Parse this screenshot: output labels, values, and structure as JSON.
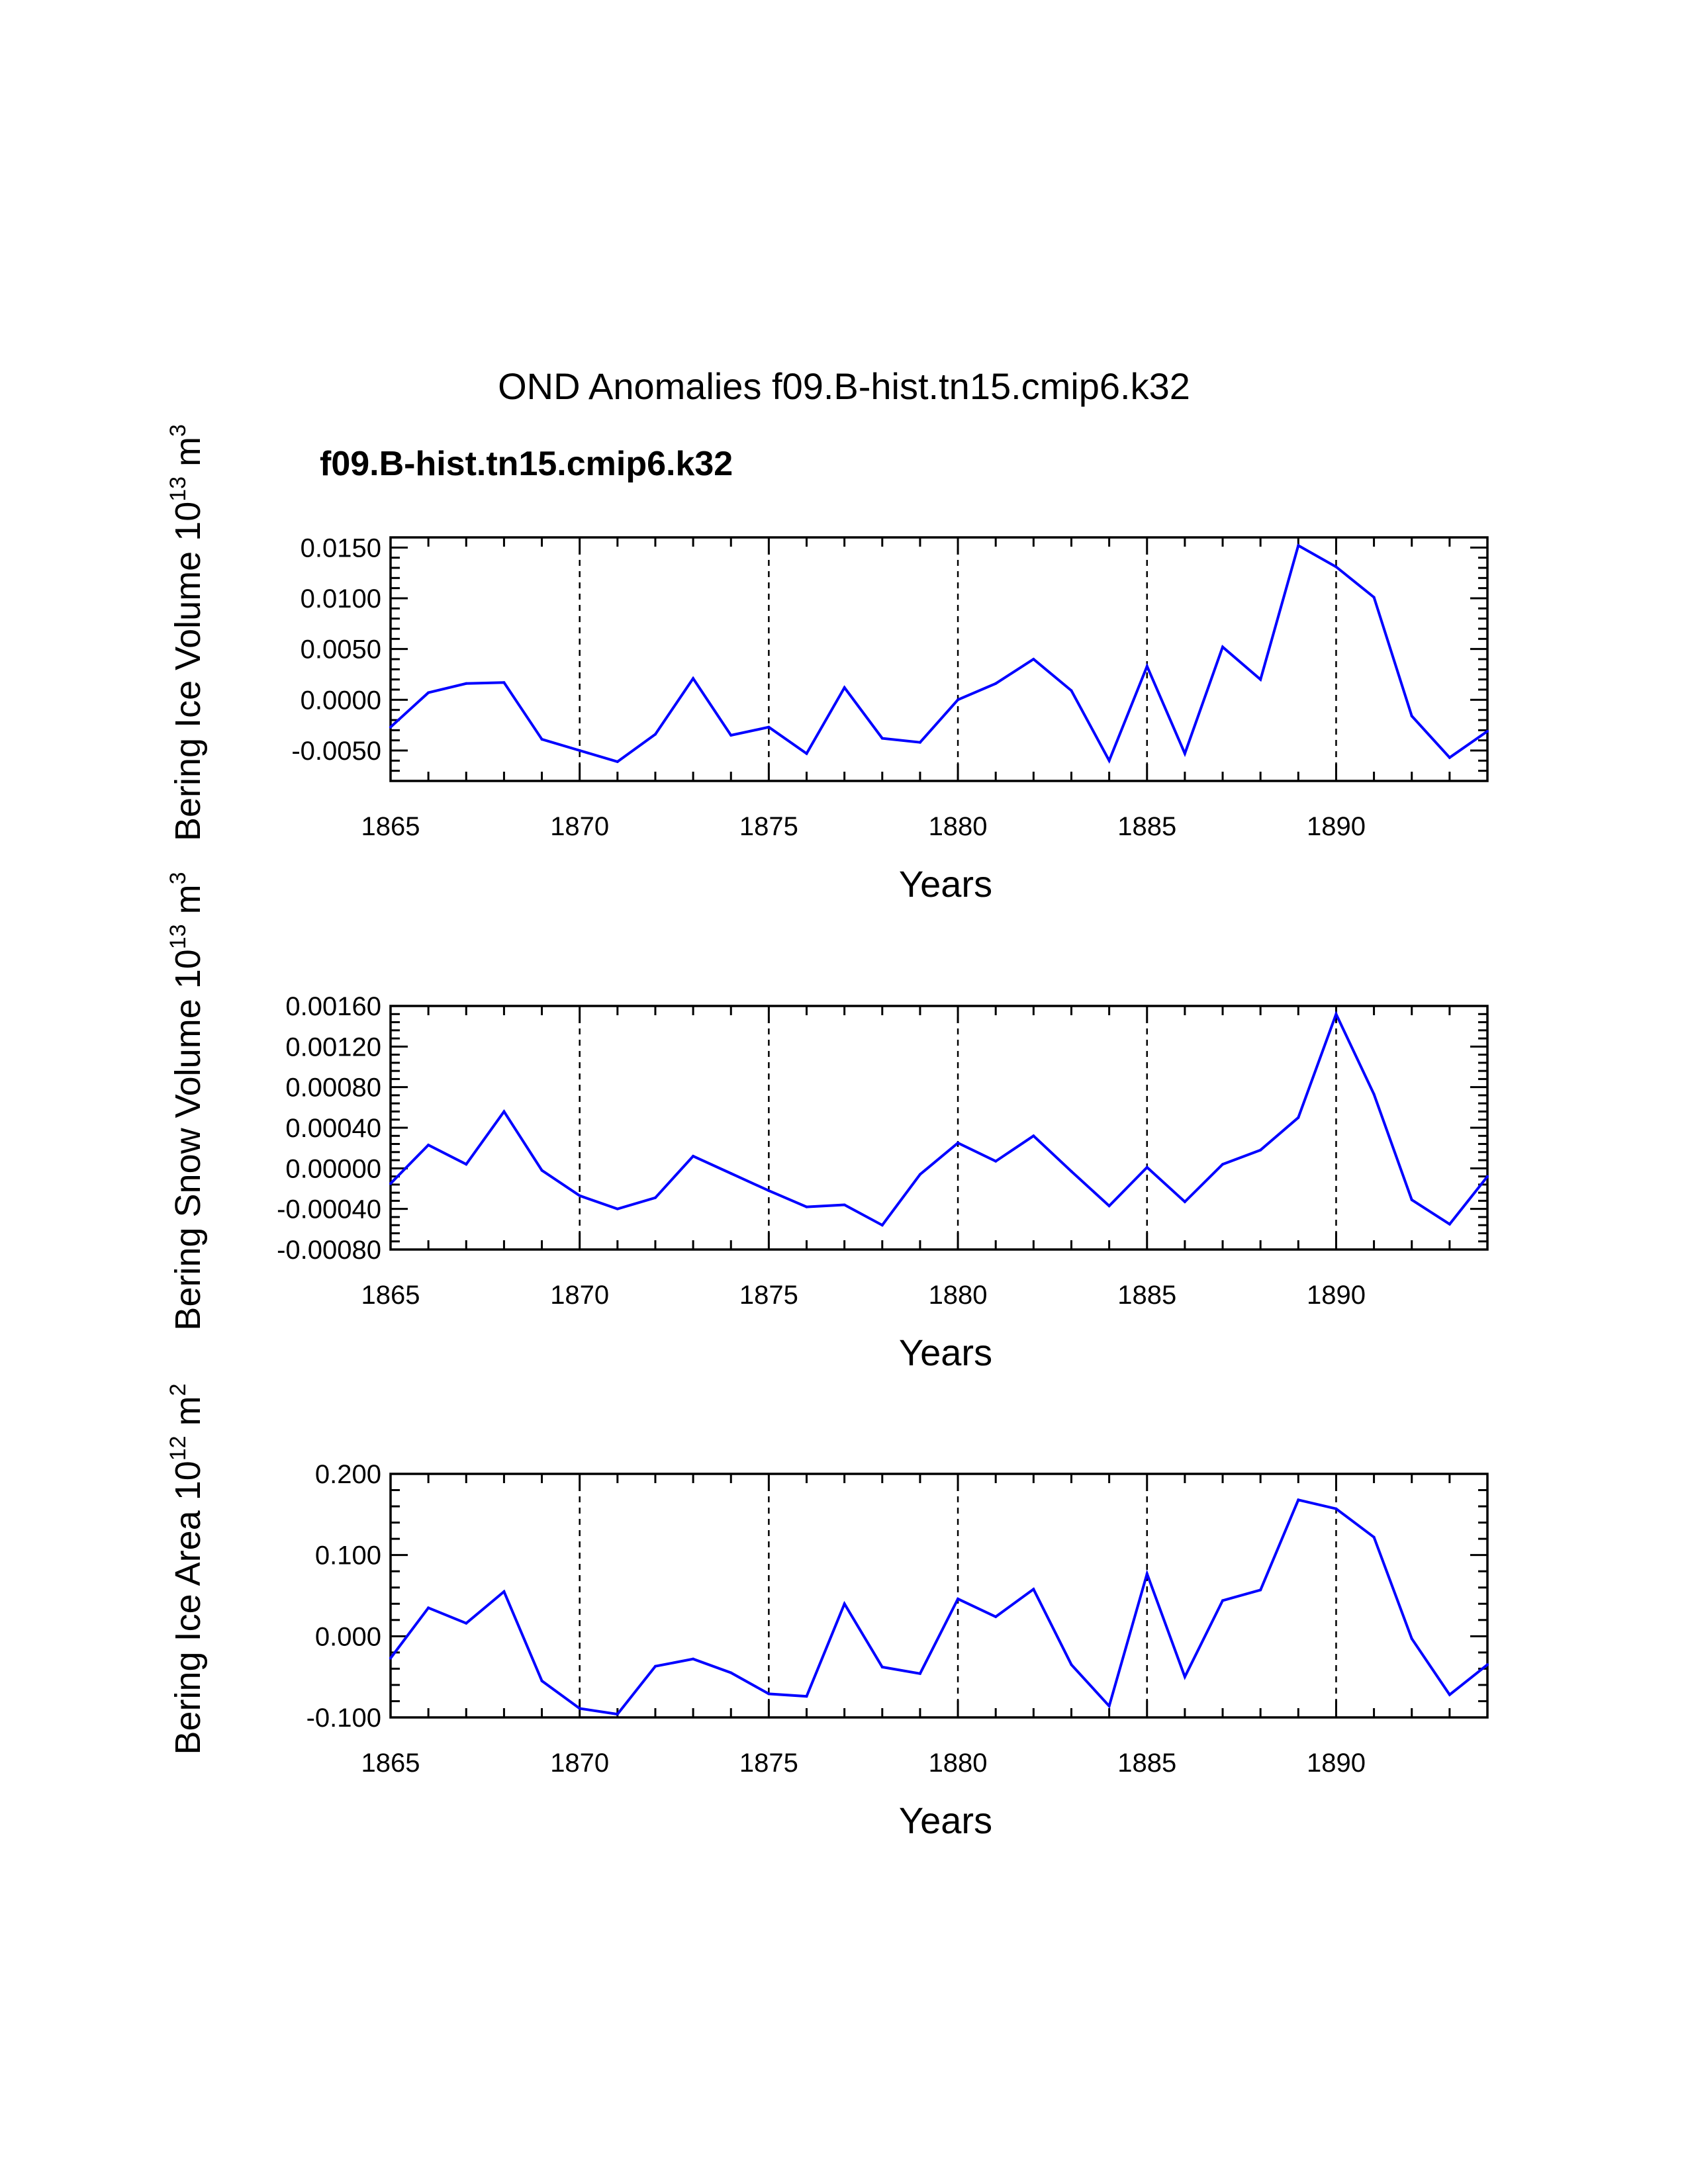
{
  "figure": {
    "title": "OND Anomalies f09.B-hist.tn15.cmip6.k32",
    "case_label": "f09.B-hist.tn15.cmip6.k32",
    "case_color": "#0000ff",
    "line_color": "#0000ff"
  },
  "chart_data": [
    {
      "type": "line",
      "title": "",
      "xlabel": "Years",
      "ylabel_text": "Bering Ice Volume 10",
      "ylabel_exp": "13",
      "ylabel_unit": " m",
      "ylabel_unit_exp": "3",
      "xlim": [
        1865,
        1894
      ],
      "ylim": [
        -0.008,
        0.016
      ],
      "x_ticks": [
        1865,
        1870,
        1875,
        1880,
        1885,
        1890
      ],
      "x_tick_labels": [
        "1865",
        "1870",
        "1875",
        "1880",
        "1885",
        "1890"
      ],
      "y_ticks": [
        -0.005,
        0.0,
        0.005,
        0.01,
        0.015
      ],
      "y_tick_labels": [
        "-0.0050",
        "0.0000",
        "0.0050",
        "0.0100",
        "0.0150"
      ],
      "x_grid": [
        1870,
        1875,
        1880,
        1885,
        1890
      ],
      "series": [
        {
          "name": "f09.B-hist.tn15.cmip6.k32",
          "x": [
            1865,
            1866,
            1867,
            1868,
            1869,
            1870,
            1871,
            1872,
            1873,
            1874,
            1875,
            1876,
            1877,
            1878,
            1879,
            1880,
            1881,
            1882,
            1883,
            1884,
            1885,
            1886,
            1887,
            1888,
            1889,
            1890,
            1891,
            1892,
            1893,
            1894
          ],
          "values": [
            -0.0027,
            0.0007,
            0.0016,
            0.0017,
            -0.0039,
            -0.005,
            -0.0061,
            -0.0034,
            0.0021,
            -0.0035,
            -0.0027,
            -0.0053,
            0.0012,
            -0.0038,
            -0.0042,
            0.0,
            0.0016,
            0.004,
            0.0009,
            -0.006,
            0.0033,
            -0.0053,
            0.0052,
            0.002,
            0.0152,
            0.0131,
            0.0101,
            -0.0016,
            -0.0057,
            -0.0031
          ]
        }
      ]
    },
    {
      "type": "line",
      "title": "",
      "xlabel": "Years",
      "ylabel_text": "Bering Snow Volume 10",
      "ylabel_exp": "13",
      "ylabel_unit": " m",
      "ylabel_unit_exp": "3",
      "xlim": [
        1865,
        1894
      ],
      "ylim": [
        -0.0008,
        0.0016
      ],
      "x_ticks": [
        1865,
        1870,
        1875,
        1880,
        1885,
        1890
      ],
      "x_tick_labels": [
        "1865",
        "1870",
        "1875",
        "1880",
        "1885",
        "1890"
      ],
      "y_ticks": [
        -0.0008,
        -0.0004,
        0.0,
        0.0004,
        0.0008,
        0.0012,
        0.0016
      ],
      "y_tick_labels": [
        "-0.00080",
        "-0.00040",
        "0.00000",
        "0.00040",
        "0.00080",
        "0.00120",
        "0.00160"
      ],
      "x_grid": [
        1870,
        1875,
        1880,
        1885,
        1890
      ],
      "series": [
        {
          "name": "f09.B-hist.tn15.cmip6.k32",
          "x": [
            1865,
            1866,
            1867,
            1868,
            1869,
            1870,
            1871,
            1872,
            1873,
            1874,
            1875,
            1876,
            1877,
            1878,
            1879,
            1880,
            1881,
            1882,
            1883,
            1884,
            1885,
            1886,
            1887,
            1888,
            1889,
            1890,
            1891,
            1892,
            1893,
            1894
          ],
          "values": [
            -0.00015,
            0.00023,
            4e-05,
            0.00056,
            -2e-05,
            -0.00027,
            -0.0004,
            -0.00029,
            0.00012,
            -5e-05,
            -0.00022,
            -0.00038,
            -0.00036,
            -0.00056,
            -6e-05,
            0.00025,
            7e-05,
            0.00032,
            -3e-05,
            -0.00037,
            1e-05,
            -0.00033,
            4e-05,
            0.00018,
            0.0005,
            0.00152,
            0.00073,
            -0.00031,
            -0.00055,
            -8e-05
          ]
        }
      ]
    },
    {
      "type": "line",
      "title": "",
      "xlabel": "Years",
      "ylabel_text": "Bering Ice Area 10",
      "ylabel_exp": "12",
      "ylabel_unit": " m",
      "ylabel_unit_exp": "2",
      "xlim": [
        1865,
        1894
      ],
      "ylim": [
        -0.1,
        0.2
      ],
      "x_ticks": [
        1865,
        1870,
        1875,
        1880,
        1885,
        1890
      ],
      "x_tick_labels": [
        "1865",
        "1870",
        "1875",
        "1880",
        "1885",
        "1890"
      ],
      "y_ticks": [
        -0.1,
        0.0,
        0.1,
        0.2
      ],
      "y_tick_labels": [
        "-0.100",
        "0.000",
        "0.100",
        "0.200"
      ],
      "x_grid": [
        1870,
        1875,
        1880,
        1885,
        1890
      ],
      "series": [
        {
          "name": "f09.B-hist.tn15.cmip6.k32",
          "x": [
            1865,
            1866,
            1867,
            1868,
            1869,
            1870,
            1871,
            1872,
            1873,
            1874,
            1875,
            1876,
            1877,
            1878,
            1879,
            1880,
            1881,
            1882,
            1883,
            1884,
            1885,
            1886,
            1887,
            1888,
            1889,
            1890,
            1891,
            1892,
            1893,
            1894
          ],
          "values": [
            -0.027,
            0.035,
            0.016,
            0.055,
            -0.055,
            -0.089,
            -0.096,
            -0.037,
            -0.028,
            -0.045,
            -0.071,
            -0.074,
            0.04,
            -0.038,
            -0.046,
            0.046,
            0.024,
            0.058,
            -0.035,
            -0.086,
            0.077,
            -0.05,
            0.044,
            0.057,
            0.168,
            0.157,
            0.122,
            -0.003,
            -0.072,
            -0.035
          ]
        }
      ]
    }
  ]
}
